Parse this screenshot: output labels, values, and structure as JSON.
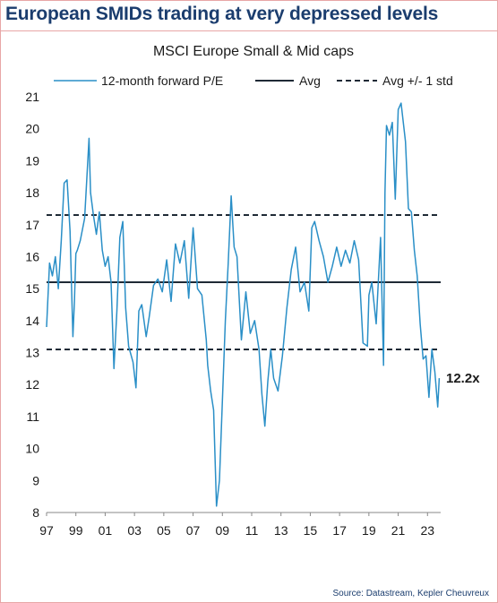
{
  "header": {
    "title": "European SMIDs trading at very depressed levels",
    "source": "Source: Datastream, Kepler Cheuvreux"
  },
  "chart_data": {
    "type": "line",
    "title": "MSCI Europe Small & Mid caps",
    "xlabel": "",
    "ylabel": "",
    "xlim": [
      1997,
      2023.9
    ],
    "ylim": [
      8,
      21
    ],
    "x_tick_labels": [
      "97",
      "99",
      "01",
      "03",
      "05",
      "07",
      "09",
      "11",
      "13",
      "15",
      "17",
      "19",
      "21",
      "23"
    ],
    "x_tick_values": [
      1997,
      1999,
      2001,
      2003,
      2005,
      2007,
      2009,
      2011,
      2013,
      2015,
      2017,
      2019,
      2021,
      2023
    ],
    "y_ticks": [
      8,
      9,
      10,
      11,
      12,
      13,
      14,
      15,
      16,
      17,
      18,
      19,
      20,
      21
    ],
    "legend_position": "top",
    "end_label": "12.2x",
    "series": [
      {
        "name": "12-month forward P/E",
        "style": "line",
        "color": "#2a8fc7",
        "x": [
          1997.0,
          1997.2,
          1997.4,
          1997.6,
          1997.8,
          1998.0,
          1998.2,
          1998.4,
          1998.6,
          1998.8,
          1998.9,
          1999.0,
          1999.1,
          1999.3,
          1999.6,
          1999.9,
          2000.0,
          2000.2,
          2000.4,
          2000.6,
          2000.8,
          2001.0,
          2001.2,
          2001.4,
          2001.6,
          2001.8,
          2002.0,
          2002.2,
          2002.4,
          2002.6,
          2002.9,
          2003.1,
          2003.3,
          2003.5,
          2003.8,
          2004.0,
          2004.3,
          2004.6,
          2004.9,
          2005.2,
          2005.5,
          2005.8,
          2006.1,
          2006.4,
          2006.7,
          2007.0,
          2007.3,
          2007.6,
          2007.9,
          2008.0,
          2008.2,
          2008.4,
          2008.6,
          2008.8,
          2009.0,
          2009.2,
          2009.4,
          2009.6,
          2009.8,
          2010.0,
          2010.3,
          2010.6,
          2010.9,
          2011.2,
          2011.5,
          2011.7,
          2011.9,
          2012.1,
          2012.3,
          2012.5,
          2012.8,
          2013.1,
          2013.4,
          2013.7,
          2014.0,
          2014.3,
          2014.6,
          2014.9,
          2015.1,
          2015.3,
          2015.6,
          2015.9,
          2016.2,
          2016.5,
          2016.8,
          2017.1,
          2017.4,
          2017.7,
          2018.0,
          2018.3,
          2018.6,
          2018.9,
          2019.0,
          2019.2,
          2019.5,
          2019.8,
          2020.0,
          2020.1,
          2020.2,
          2020.4,
          2020.6,
          2020.8,
          2021.0,
          2021.2,
          2021.5,
          2021.7,
          2021.9,
          2022.1,
          2022.3,
          2022.5,
          2022.7,
          2022.9,
          2023.1,
          2023.3,
          2023.5,
          2023.7,
          2023.8
        ],
        "y": [
          13.8,
          15.8,
          15.4,
          16.0,
          15.0,
          16.5,
          18.3,
          18.4,
          16.8,
          13.5,
          14.6,
          16.1,
          16.2,
          16.5,
          17.2,
          19.7,
          18.0,
          17.3,
          16.7,
          17.4,
          16.2,
          15.7,
          16.0,
          15.2,
          12.5,
          14.3,
          16.6,
          17.1,
          14.4,
          13.2,
          12.7,
          11.9,
          14.3,
          14.5,
          13.5,
          14.1,
          15.1,
          15.3,
          14.9,
          15.9,
          14.6,
          16.4,
          15.8,
          16.5,
          14.7,
          16.9,
          15.0,
          14.8,
          13.4,
          12.6,
          11.8,
          11.2,
          8.2,
          9.0,
          11.5,
          14.0,
          15.8,
          17.9,
          16.3,
          16.0,
          13.4,
          14.9,
          13.6,
          14.0,
          13.1,
          11.7,
          10.7,
          12.1,
          13.1,
          12.2,
          11.8,
          12.9,
          14.4,
          15.6,
          16.3,
          14.9,
          15.2,
          14.3,
          16.9,
          17.1,
          16.5,
          16.0,
          15.2,
          15.7,
          16.3,
          15.7,
          16.2,
          15.8,
          16.5,
          15.9,
          13.3,
          13.2,
          14.8,
          15.2,
          13.9,
          16.6,
          12.6,
          18.0,
          20.1,
          19.8,
          20.2,
          17.8,
          20.6,
          20.8,
          19.6,
          17.5,
          17.4,
          16.2,
          15.4,
          13.9,
          12.8,
          12.9,
          11.6,
          13.1,
          12.4,
          11.3,
          12.2
        ]
      },
      {
        "name": "Avg",
        "style": "solid",
        "color": "#1f2a36",
        "value": 15.2
      },
      {
        "name": "Avg +/- 1 std",
        "style": "dashed",
        "color": "#1f2a36",
        "values": [
          17.3,
          13.1
        ]
      }
    ]
  }
}
